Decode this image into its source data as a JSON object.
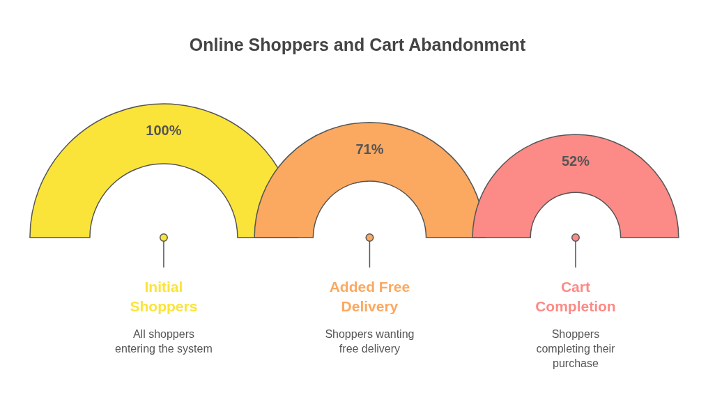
{
  "chart_data": {
    "type": "other",
    "title": "Online Shoppers and Cart Abandonment",
    "categories": [
      "Initial\nShoppers",
      "Added Free\nDelivery",
      "Cart\nCompletion"
    ],
    "values": [
      100,
      71,
      52
    ],
    "value_labels": [
      "100%",
      "71%",
      "52%"
    ],
    "colors": [
      "#fbe43a",
      "#fba860",
      "#fc8a86"
    ],
    "annotations": [
      "All shoppers\nentering the system",
      "Shoppers wanting\nfree delivery",
      "Shoppers\ncompleting their\npurchase"
    ]
  }
}
